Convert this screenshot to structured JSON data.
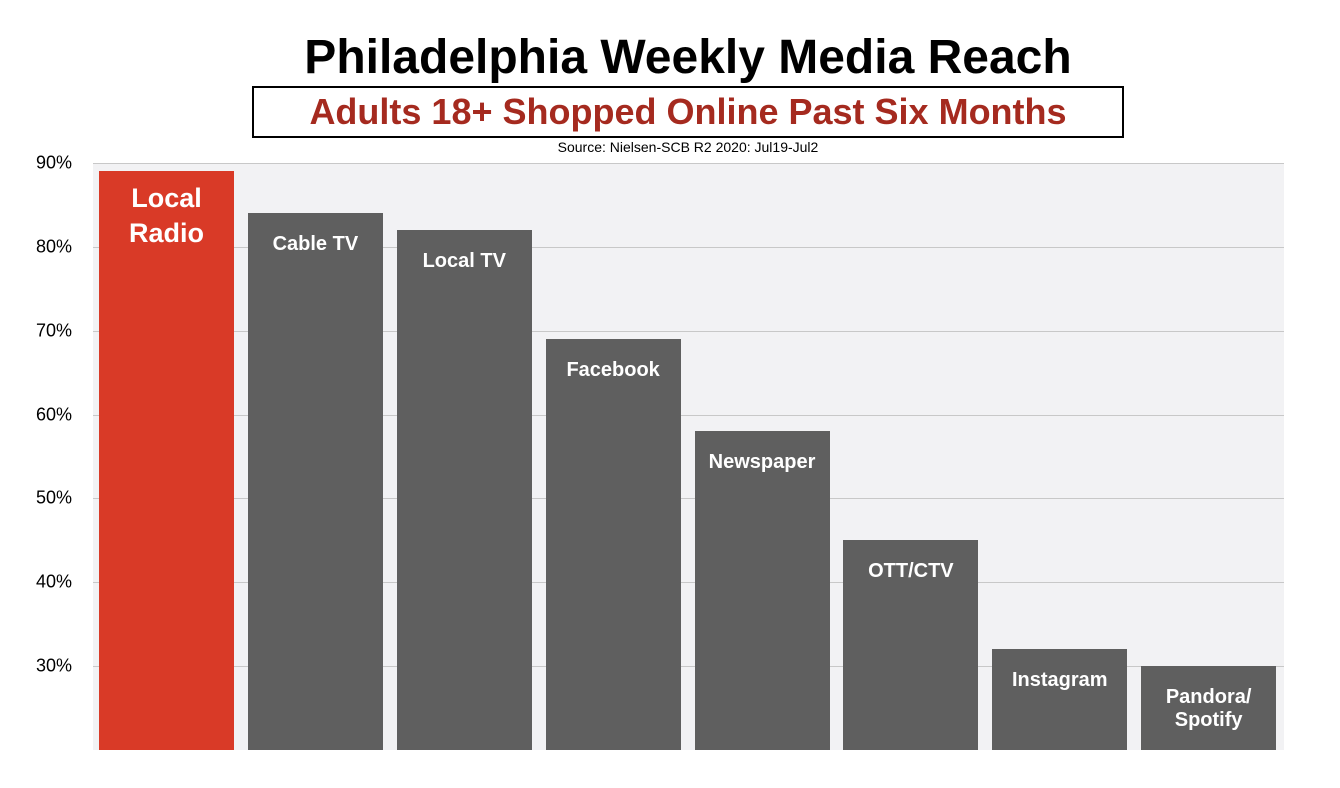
{
  "chart_data": {
    "type": "bar",
    "title": "Philadelphia Weekly Media Reach",
    "subtitle": "Adults 18+ Shopped Online Past Six Months",
    "source": "Source: Nielsen-SCB R2 2020: Jul19-Jul2",
    "categories": [
      "Local Radio",
      "Cable TV",
      "Local TV",
      "Facebook",
      "Newspaper",
      "OTT/CTV",
      "Instagram",
      "Pandora/ Spotify"
    ],
    "values": [
      89,
      84,
      82,
      69,
      58,
      45,
      32,
      30
    ],
    "colors": [
      "#d93a27",
      "#5f5f5f",
      "#5f5f5f",
      "#5f5f5f",
      "#5f5f5f",
      "#5f5f5f",
      "#5f5f5f",
      "#5f5f5f"
    ],
    "ylim": [
      20,
      90
    ],
    "yticks": [
      {
        "value": 30,
        "label": "30%"
      },
      {
        "value": 40,
        "label": "40%"
      },
      {
        "value": 50,
        "label": "50%"
      },
      {
        "value": 60,
        "label": "60%"
      },
      {
        "value": 70,
        "label": "70%"
      },
      {
        "value": 80,
        "label": "80%"
      },
      {
        "value": 90,
        "label": "90%"
      }
    ],
    "grid": true
  }
}
